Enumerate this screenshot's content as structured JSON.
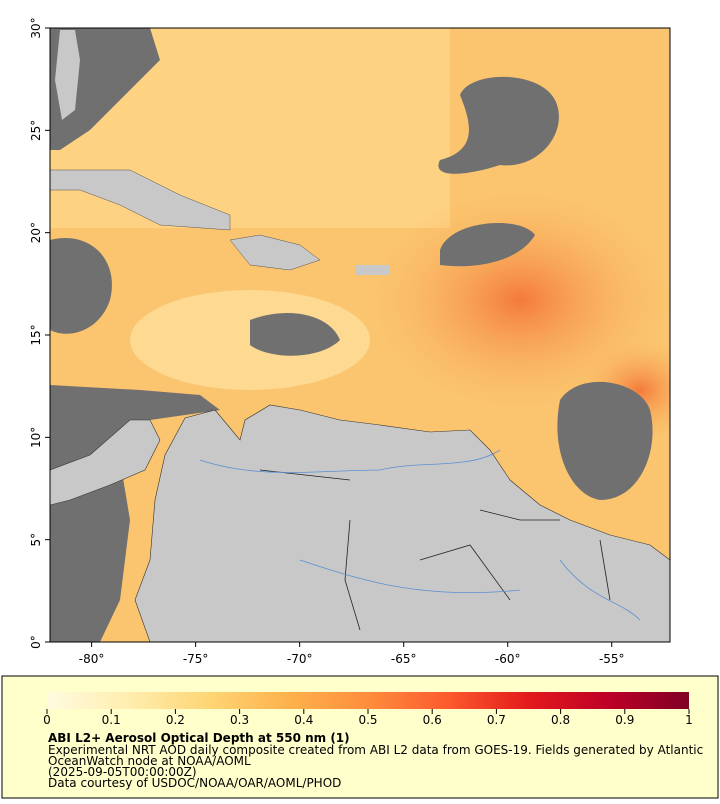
{
  "map": {
    "xlim": [
      -82,
      -52.2
    ],
    "ylim": [
      0,
      30
    ],
    "lonticks": [
      {
        "value": -80,
        "label": "-80°"
      },
      {
        "value": -75,
        "label": "-75°"
      },
      {
        "value": -70,
        "label": "-70°"
      },
      {
        "value": -65,
        "label": "-65°"
      },
      {
        "value": -60,
        "label": "-60°"
      },
      {
        "value": -55,
        "label": "-55°"
      }
    ],
    "latticks": [
      {
        "value": 0,
        "label": "0°"
      },
      {
        "value": 5,
        "label": "5°"
      },
      {
        "value": 10,
        "label": "10°"
      },
      {
        "value": 15,
        "label": "15°"
      },
      {
        "value": 20,
        "label": "20°"
      },
      {
        "value": 25,
        "label": "25°"
      },
      {
        "value": 30,
        "label": "30°"
      }
    ]
  },
  "colorbar": {
    "lim": [
      0,
      1
    ],
    "ticks": [
      0,
      0.1,
      0.2,
      0.3,
      0.4,
      0.5,
      0.6,
      0.7,
      0.8,
      0.9,
      1
    ],
    "colors": [
      "#fffbe0",
      "#ffeeb0",
      "#fed676",
      "#feb24c",
      "#fd8d3c",
      "#fc5a2d",
      "#e31a1c",
      "#bd0026",
      "#800026"
    ]
  },
  "caption": {
    "title": "ABI L2+ Aerosol Optical Depth at 550 nm (1)",
    "lines": [
      "Experimental NRT AOD daily composite created from ABI L2 data from GOES-19. Fields generated by Atlantic",
      "OceanWatch node at NOAA/AOML",
      "(2025-09-05T00:00:00Z)",
      "Data courtesy of USDOC/NOAA/OAR/AOML/PHOD"
    ]
  }
}
